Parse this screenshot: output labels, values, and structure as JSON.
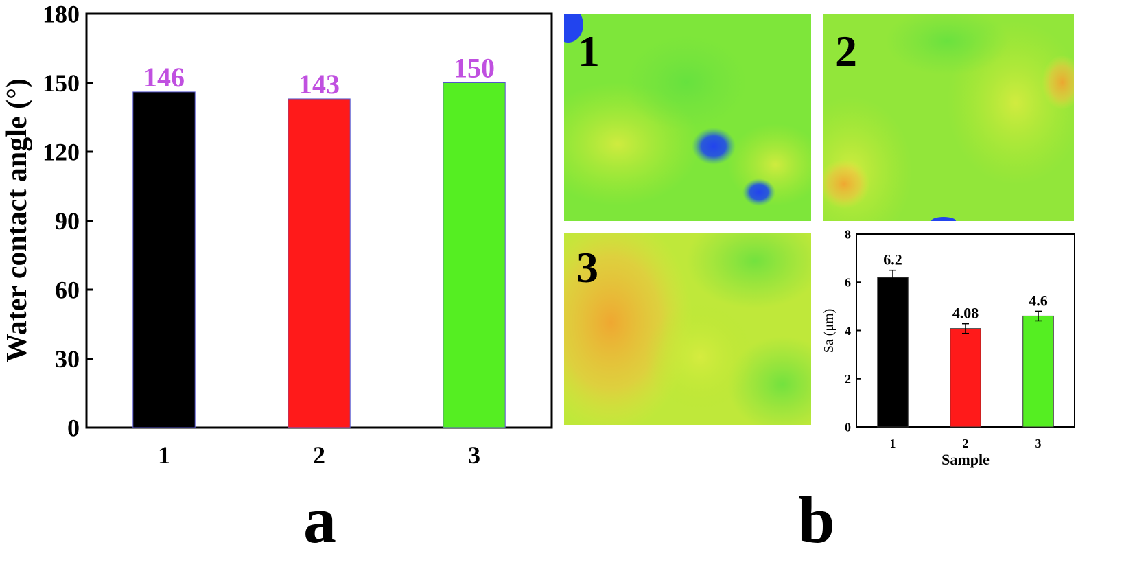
{
  "panels": {
    "a_label": "a",
    "b_label": "b"
  },
  "maps": [
    {
      "label": "1"
    },
    {
      "label": "2"
    },
    {
      "label": "3"
    }
  ],
  "colors": {
    "black": "#000000",
    "red": "#ff1a1a",
    "green": "#55ee22",
    "value_label": "#c050e0"
  },
  "chart_data": [
    {
      "type": "bar",
      "title": "",
      "xlabel": "",
      "ylabel": "Water contact angle (°)",
      "categories": [
        "1",
        "2",
        "3"
      ],
      "values": [
        146,
        143,
        150
      ],
      "data_labels": [
        "146",
        "143",
        "150"
      ],
      "bar_colors": [
        "#000000",
        "#ff1a1a",
        "#55ee22"
      ],
      "ylim": [
        0,
        180
      ],
      "yticks": [
        0,
        30,
        60,
        90,
        120,
        150,
        180
      ],
      "grid": false
    },
    {
      "type": "bar",
      "title": "",
      "xlabel": "Sample",
      "ylabel": "Sa (μm)",
      "categories": [
        "1",
        "2",
        "3"
      ],
      "values": [
        6.2,
        4.08,
        4.6
      ],
      "error": [
        0.3,
        0.2,
        0.2
      ],
      "data_labels": [
        "6.2",
        "4.08",
        "4.6"
      ],
      "bar_colors": [
        "#000000",
        "#ff1a1a",
        "#55ee22"
      ],
      "ylim": [
        0,
        8
      ],
      "yticks": [
        0,
        2,
        4,
        6,
        8
      ],
      "grid": false
    }
  ]
}
